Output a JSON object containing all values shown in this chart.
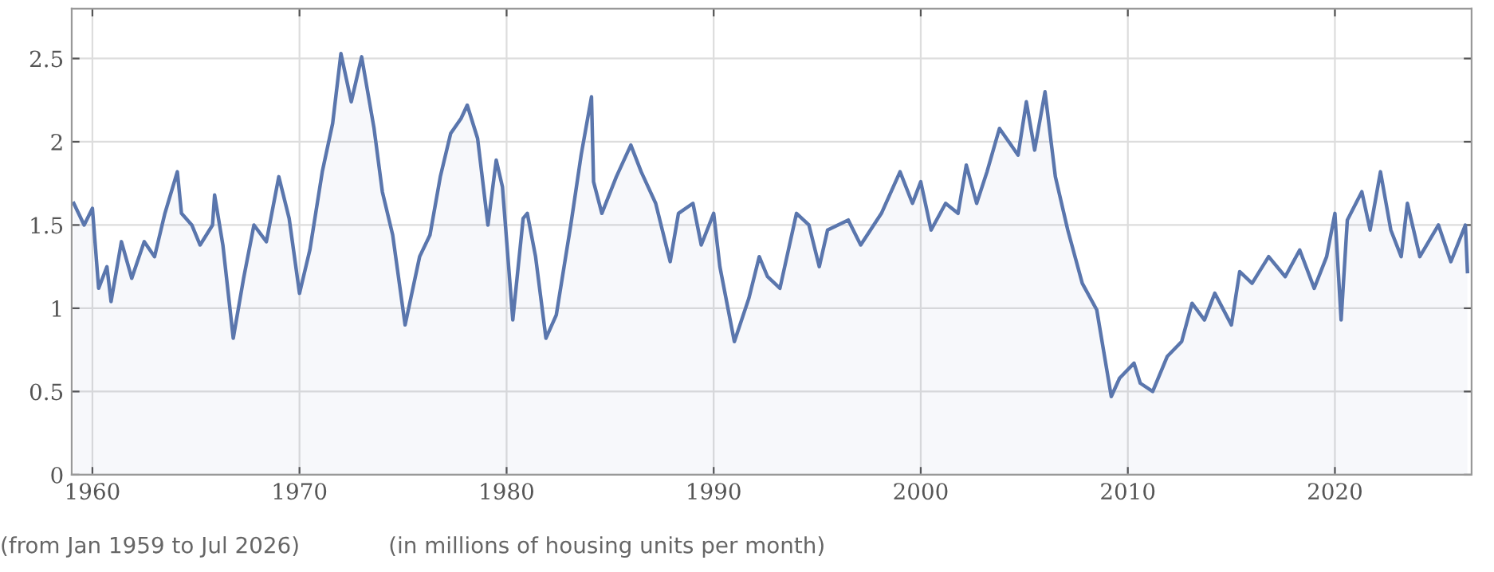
{
  "chart_data": {
    "type": "area",
    "xlim": [
      1959,
      2026.6
    ],
    "ylim": [
      0,
      2.8
    ],
    "xticks": [
      1960,
      1970,
      1980,
      1990,
      2000,
      2010,
      2020
    ],
    "yticks": [
      0,
      0.5,
      1,
      1.5,
      2,
      2.5
    ],
    "grid": true,
    "annotations": [
      "(from Jan 1959 to Jul 2026)",
      "(in millions of housing units per month)"
    ],
    "series": [
      {
        "color": "#5a76ad",
        "x": [
          1959.1,
          1959.6,
          1960.0,
          1960.3,
          1960.7,
          1960.9,
          1961.4,
          1961.9,
          1962.5,
          1963.0,
          1963.5,
          1964.1,
          1964.3,
          1964.8,
          1965.2,
          1965.8,
          1965.9,
          1966.3,
          1966.8,
          1967.3,
          1967.8,
          1968.4,
          1969.0,
          1969.5,
          1970.0,
          1970.5,
          1971.1,
          1971.6,
          1972.0,
          1972.5,
          1973.0,
          1973.6,
          1974.0,
          1974.5,
          1975.1,
          1975.8,
          1976.3,
          1976.8,
          1977.3,
          1977.8,
          1978.1,
          1978.6,
          1979.1,
          1979.5,
          1979.8,
          1980.3,
          1980.8,
          1981.0,
          1981.4,
          1981.9,
          1982.4,
          1983.1,
          1983.6,
          1984.1,
          1984.2,
          1984.6,
          1985.3,
          1986.0,
          1986.5,
          1987.2,
          1987.9,
          1988.3,
          1989.0,
          1989.4,
          1990.0,
          1990.3,
          1991.0,
          1991.7,
          1992.2,
          1992.6,
          1993.2,
          1994.0,
          1994.6,
          1995.1,
          1995.5,
          1996.5,
          1997.1,
          1998.1,
          1999.0,
          1999.6,
          2000.0,
          2000.5,
          2001.2,
          2001.8,
          2002.2,
          2002.7,
          2003.2,
          2003.8,
          2004.7,
          2005.1,
          2005.5,
          2006.0,
          2006.5,
          2007.1,
          2007.8,
          2008.5,
          2009.2,
          2009.6,
          2010.3,
          2010.6,
          2011.2,
          2011.9,
          2012.6,
          2013.1,
          2013.7,
          2014.2,
          2015.0,
          2015.4,
          2016.0,
          2016.8,
          2017.6,
          2018.3,
          2019.0,
          2019.6,
          2020.0,
          2020.3,
          2020.6,
          2021.3,
          2021.7,
          2022.2,
          2022.7,
          2023.2,
          2023.5,
          2024.1,
          2025.0,
          2025.6,
          2026.3,
          2026.4
        ],
        "values": [
          1.63,
          1.5,
          1.6,
          1.12,
          1.25,
          1.04,
          1.4,
          1.18,
          1.4,
          1.31,
          1.57,
          1.82,
          1.57,
          1.5,
          1.38,
          1.5,
          1.68,
          1.38,
          0.82,
          1.18,
          1.5,
          1.4,
          1.79,
          1.54,
          1.09,
          1.35,
          1.82,
          2.11,
          2.53,
          2.24,
          2.51,
          2.08,
          1.7,
          1.44,
          0.9,
          1.31,
          1.44,
          1.79,
          2.05,
          2.14,
          2.22,
          2.02,
          1.5,
          1.89,
          1.73,
          0.93,
          1.54,
          1.57,
          1.31,
          0.82,
          0.96,
          1.5,
          1.92,
          2.27,
          1.76,
          1.57,
          1.79,
          1.98,
          1.82,
          1.63,
          1.28,
          1.57,
          1.63,
          1.38,
          1.57,
          1.25,
          0.8,
          1.06,
          1.31,
          1.19,
          1.12,
          1.57,
          1.5,
          1.25,
          1.47,
          1.53,
          1.38,
          1.57,
          1.82,
          1.63,
          1.76,
          1.47,
          1.63,
          1.57,
          1.86,
          1.63,
          1.82,
          2.08,
          1.92,
          2.24,
          1.95,
          2.3,
          1.79,
          1.47,
          1.15,
          0.99,
          0.47,
          0.58,
          0.67,
          0.55,
          0.5,
          0.71,
          0.8,
          1.03,
          0.93,
          1.09,
          0.9,
          1.22,
          1.15,
          1.31,
          1.19,
          1.35,
          1.12,
          1.31,
          1.57,
          0.93,
          1.53,
          1.7,
          1.47,
          1.82,
          1.47,
          1.31,
          1.63,
          1.31,
          1.5,
          1.28,
          1.5,
          1.22
        ]
      }
    ]
  }
}
